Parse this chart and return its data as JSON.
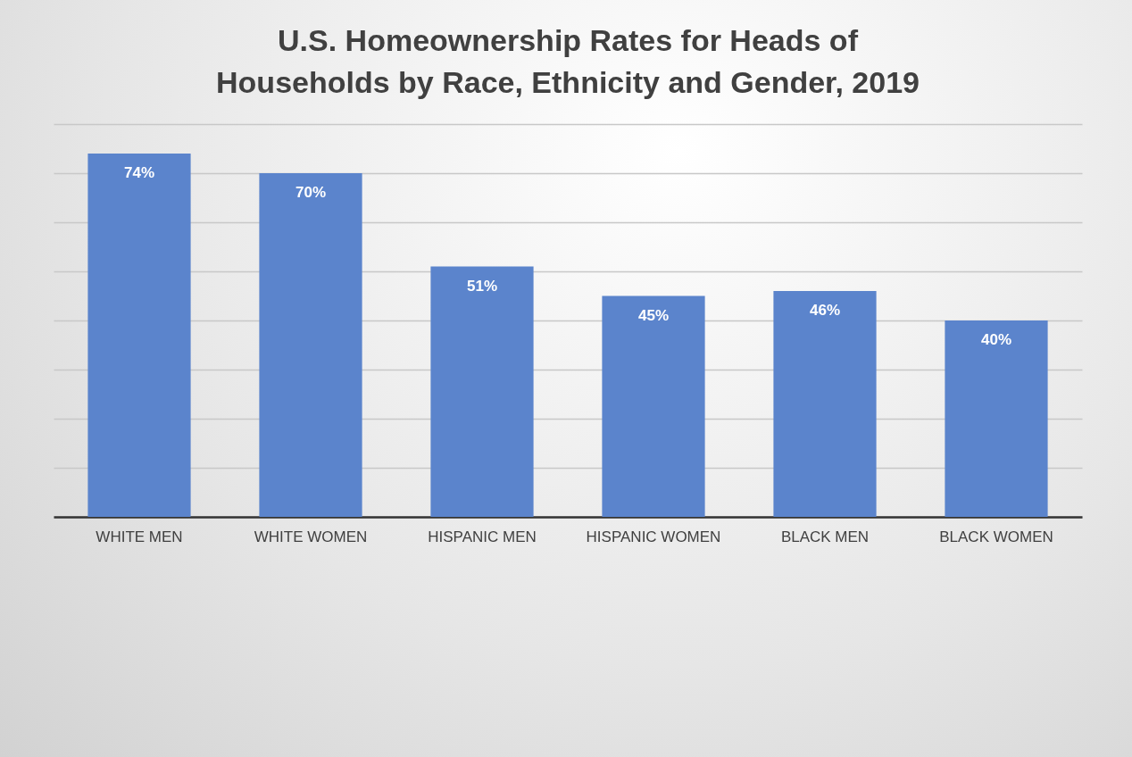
{
  "chart_data": {
    "type": "bar",
    "title": "U.S. Homeownership Rates for Heads of Households by Race, Ethnicity and Gender, 2019",
    "categories": [
      "WHITE MEN",
      "WHITE WOMEN",
      "HISPANIC MEN",
      "HISPANIC WOMEN",
      "BLACK MEN",
      "BLACK WOMEN"
    ],
    "values": [
      74,
      70,
      51,
      45,
      46,
      40
    ],
    "value_labels": [
      "74%",
      "70%",
      "51%",
      "45%",
      "46%",
      "40%"
    ],
    "color": "#5b84cc",
    "ylim": [
      0,
      80
    ],
    "yticks": [
      {
        "value": 0,
        "label": null
      },
      {
        "value": 10,
        "label": null
      },
      {
        "value": 20,
        "label": null
      },
      {
        "value": 30,
        "label": null
      },
      {
        "value": 40,
        "label": null
      },
      {
        "value": 50,
        "label": null
      },
      {
        "value": 60,
        "label": null
      },
      {
        "value": 70,
        "label": null
      },
      {
        "value": 80,
        "label": null
      }
    ],
    "grid": "y",
    "tick_labels": "x"
  }
}
